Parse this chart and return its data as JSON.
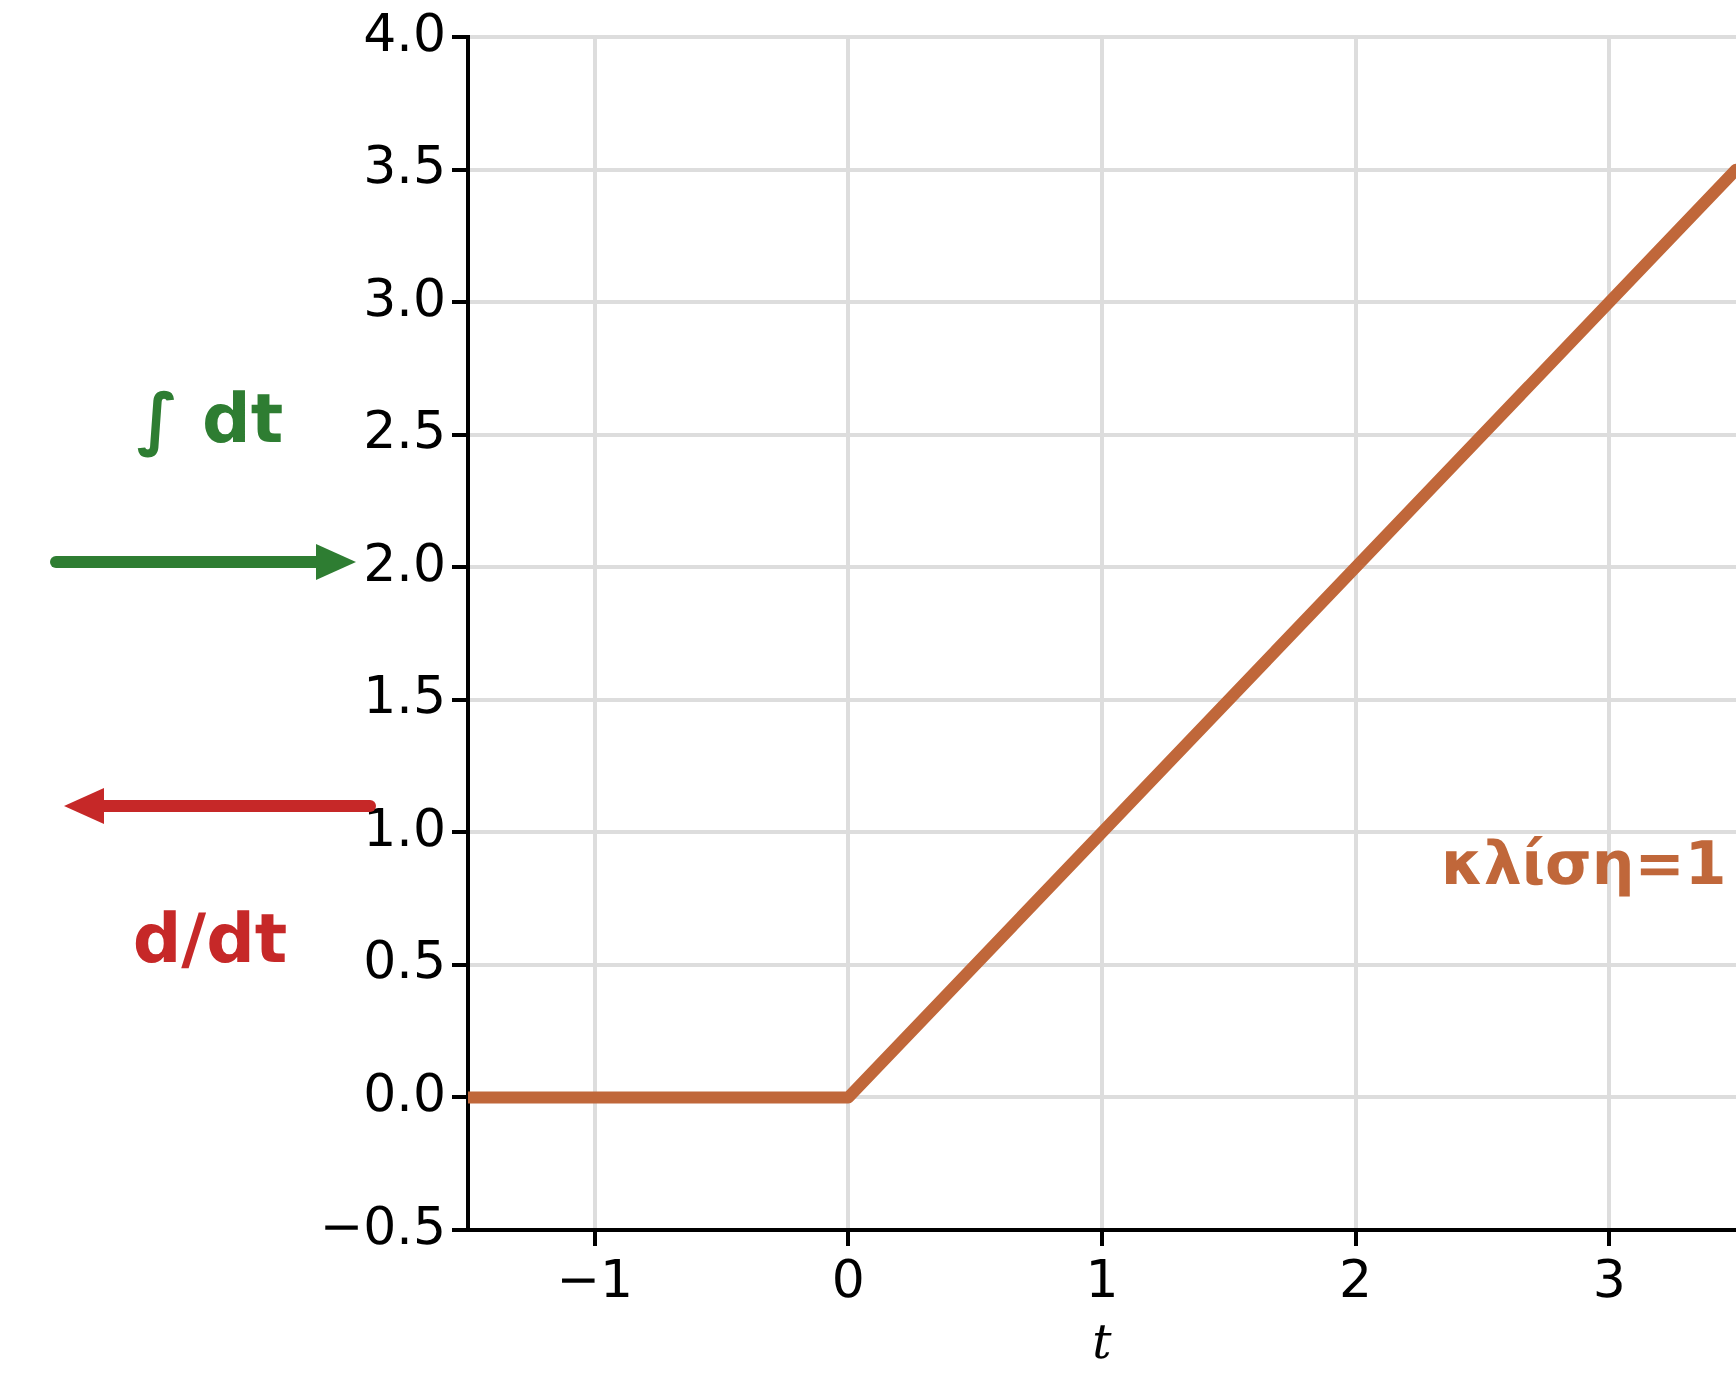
{
  "chart_data": {
    "type": "line",
    "xlabel": "t",
    "x": [
      -1.5,
      0,
      3.5
    ],
    "series": [
      {
        "color": "#c0673a",
        "values": [
          0,
          0,
          3.5
        ]
      }
    ],
    "xlim": [
      -1.5,
      3.5
    ],
    "xticks": [
      {
        "value": -1,
        "label": "−1"
      },
      0,
      1,
      2,
      3
    ],
    "ylim": [
      -0.5,
      4
    ],
    "yticks": [
      {
        "value": -0.5,
        "label": "−0.5"
      },
      {
        "value": 0,
        "label": "0.0"
      },
      {
        "value": 0.5,
        "label": "0.5"
      },
      {
        "value": 1,
        "label": "1.0"
      },
      {
        "value": 1.5,
        "label": "1.5"
      },
      {
        "value": 2,
        "label": "2.0"
      },
      {
        "value": 2.5,
        "label": "2.5"
      },
      {
        "value": 3,
        "label": "3.0"
      },
      {
        "value": 3.5,
        "label": "3.5"
      },
      {
        "value": 4,
        "label": "4.0"
      }
    ],
    "grid": true,
    "legend": false,
    "marker": "none",
    "line_style": "solid",
    "annotations": [
      "∫ dt",
      "d/dt",
      "κλίση=1"
    ]
  }
}
